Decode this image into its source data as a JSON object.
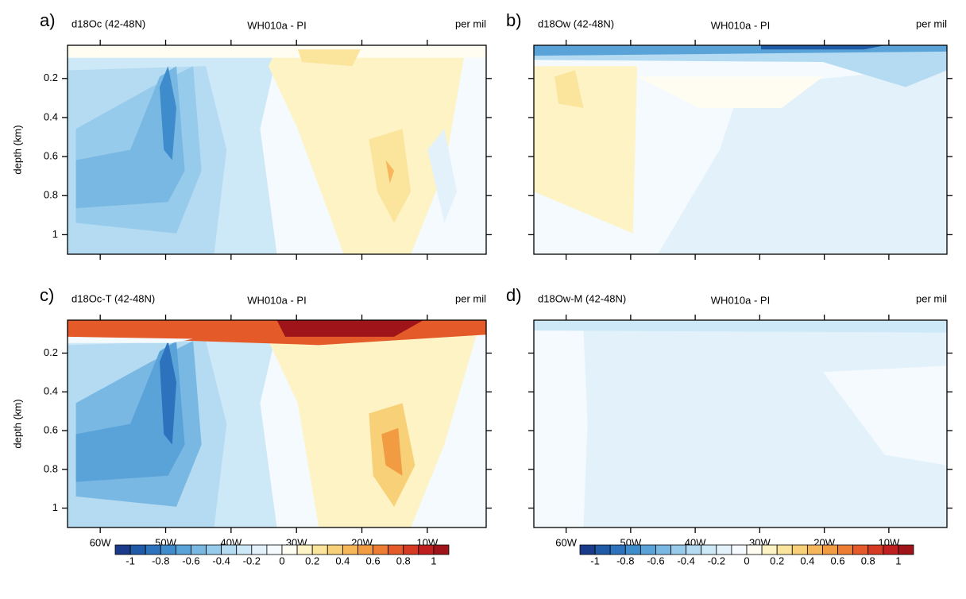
{
  "chart_data": [
    {
      "type": "contour",
      "panel_label": "a)",
      "title_left": "d18Oc (42-48N)",
      "title_center": "WH010a - PI",
      "title_right": "per mil",
      "ylabel": "depth (km)",
      "xlim": [
        -65,
        -1
      ],
      "ylim": [
        0.03,
        1.1
      ],
      "xticks": [
        -60,
        -50,
        -40,
        -30,
        -20,
        -10
      ],
      "yticks": [
        0.2,
        0.4,
        0.6,
        0.8,
        1.0
      ]
    },
    {
      "type": "contour",
      "panel_label": "b)",
      "title_left": "d18Ow (42-48N)",
      "title_center": "WH010a - PI",
      "title_right": "per mil",
      "xlim": [
        -65,
        -1
      ],
      "ylim": [
        0.03,
        1.1
      ],
      "xticks": [
        -60,
        -50,
        -40,
        -30,
        -20,
        -10
      ],
      "yticks": [
        0.2,
        0.4,
        0.6,
        0.8,
        1.0
      ]
    },
    {
      "type": "contour",
      "panel_label": "c)",
      "title_left": "d18Oc-T (42-48N)",
      "title_center": "WH010a - PI",
      "title_right": "per mil",
      "ylabel": "depth (km)",
      "xlim": [
        -65,
        -1
      ],
      "ylim": [
        0.03,
        1.1
      ],
      "xticks": [
        {
          "value": -60,
          "label": "60W"
        },
        {
          "value": -50,
          "label": "50W"
        },
        {
          "value": -40,
          "label": "40W"
        },
        {
          "value": -30,
          "label": "30W"
        },
        {
          "value": -20,
          "label": "20W"
        },
        {
          "value": -10,
          "label": "10W"
        }
      ],
      "yticks": [
        0.2,
        0.4,
        0.6,
        0.8,
        1.0
      ]
    },
    {
      "type": "contour",
      "panel_label": "d)",
      "title_left": "d18Ow-M (42-48N)",
      "title_center": "WH010a - PI",
      "title_right": "per mil",
      "xlim": [
        -65,
        -1
      ],
      "ylim": [
        0.03,
        1.1
      ],
      "xticks": [
        {
          "value": -60,
          "label": "60W"
        },
        {
          "value": -50,
          "label": "50W"
        },
        {
          "value": -40,
          "label": "40W"
        },
        {
          "value": -30,
          "label": "30W"
        },
        {
          "value": -20,
          "label": "20W"
        },
        {
          "value": -10,
          "label": "10W"
        }
      ],
      "yticks": [
        0.2,
        0.4,
        0.6,
        0.8,
        1.0
      ]
    }
  ],
  "colorbar": {
    "lim": [
      -1.1,
      1.1
    ],
    "ticks": [
      -1,
      -0.8,
      -0.6,
      -0.4,
      -0.2,
      0,
      0.2,
      0.4,
      0.6,
      0.8,
      1
    ],
    "colors": [
      "#1a3b8a",
      "#1f5aa6",
      "#2c72bd",
      "#3f8ccd",
      "#5aa3d9",
      "#79b8e3",
      "#97cbeb",
      "#b4dbf2",
      "#cde8f6",
      "#e3f2fa",
      "#f4fafd",
      "#fffdf2",
      "#fdf3c4",
      "#fbe49b",
      "#f8d077",
      "#f5b75a",
      "#f19c43",
      "#ec7d33",
      "#e45a28",
      "#d53a22",
      "#bf1f1f",
      "#9e1419"
    ]
  }
}
